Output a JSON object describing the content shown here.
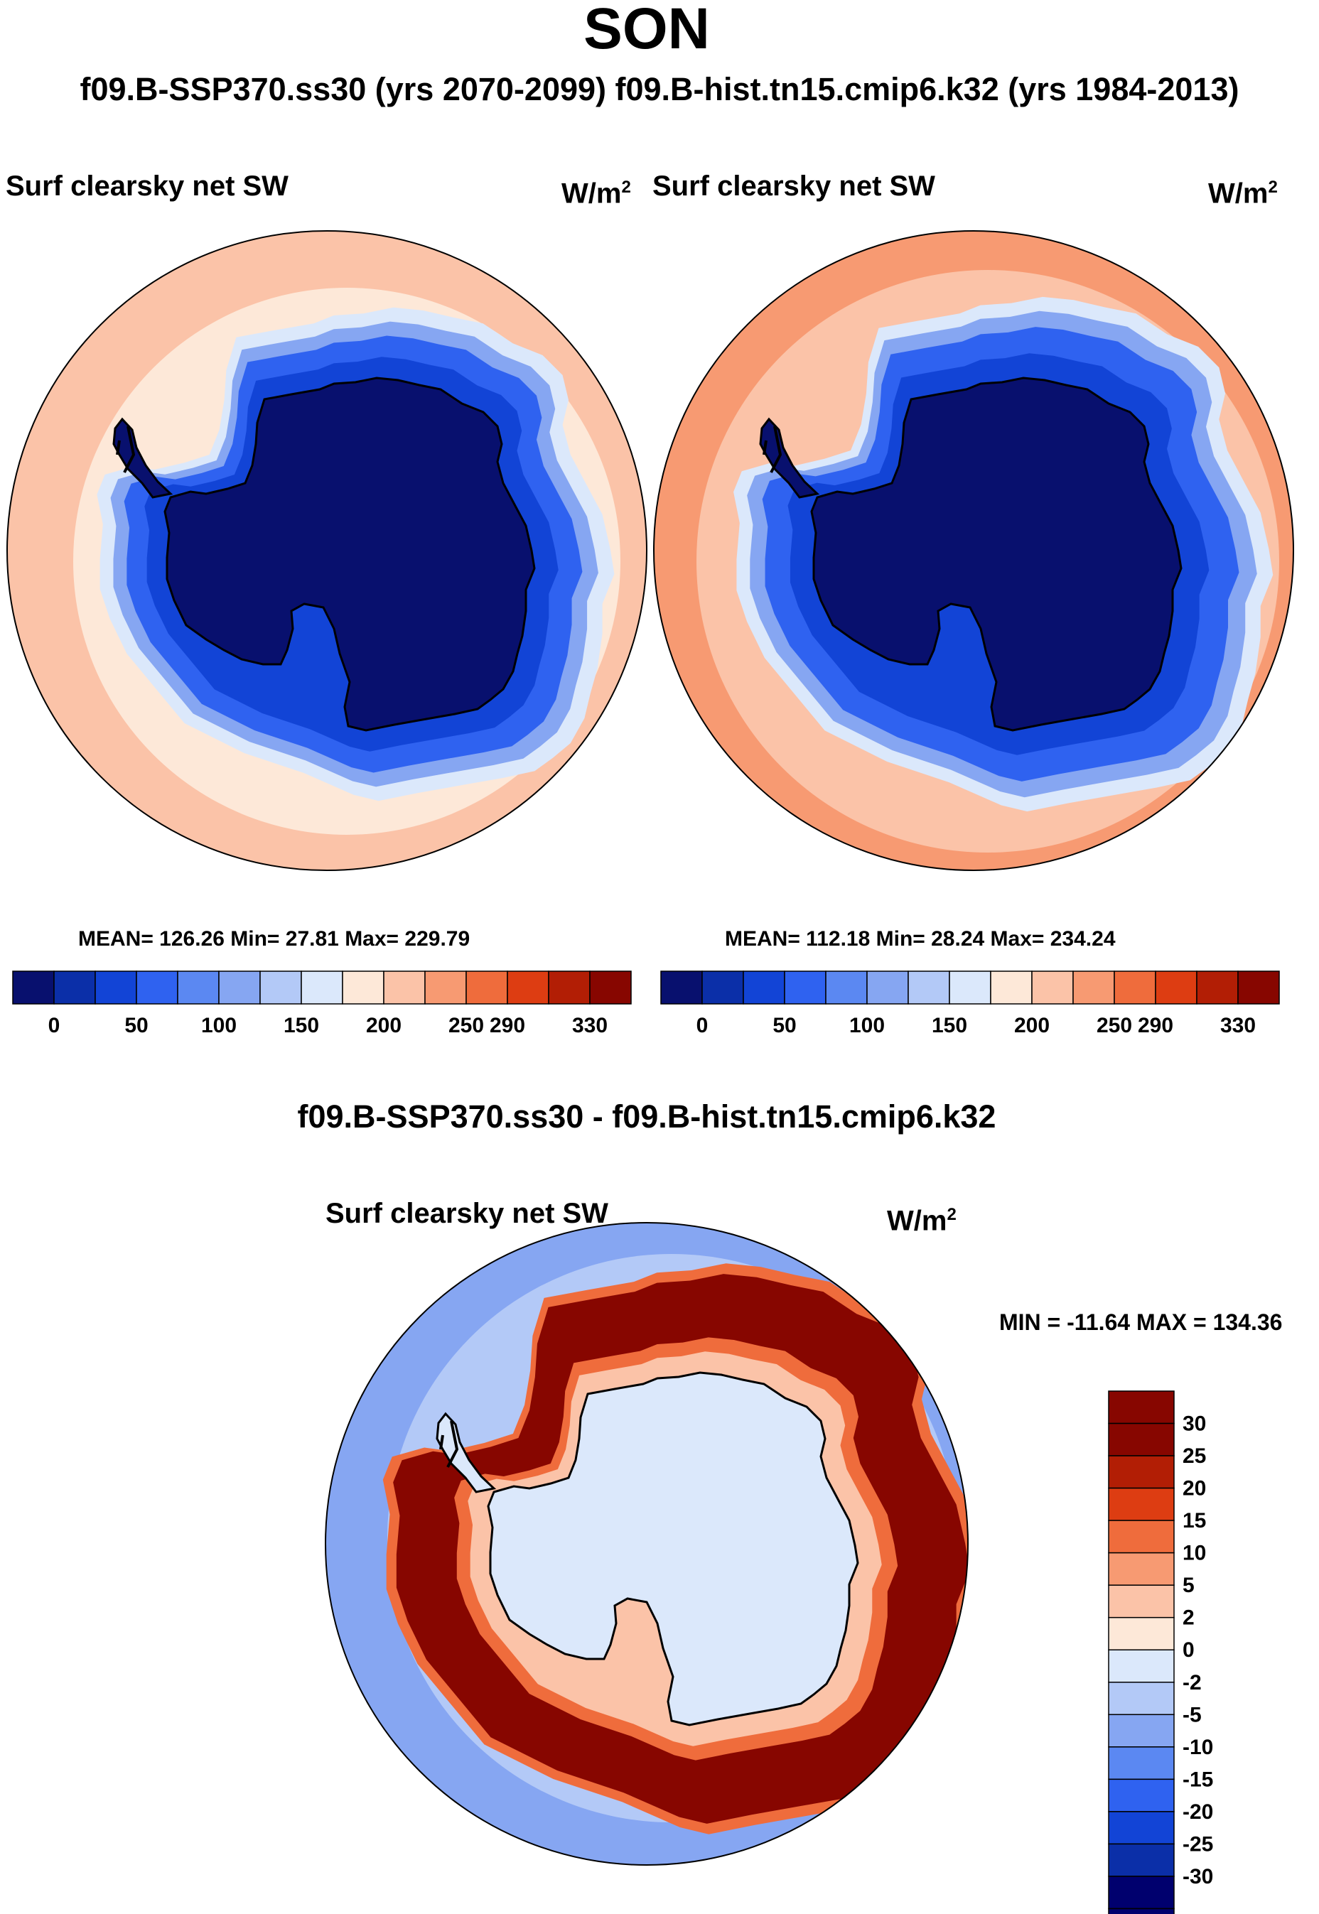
{
  "header": {
    "season": "SON",
    "case_pair": "f09.B-SSP370.ss30 (yrs 2070-2099)  f09.B-hist.tn15.cmip6.k32 (yrs 1984-2013)"
  },
  "panels": [
    {
      "variable": "Surf clearsky net SW",
      "units_base": "W/m",
      "units_exp": "2",
      "stats": "MEAN= 126.26  Min=  27.81  Max= 229.79"
    },
    {
      "variable": "Surf clearsky net SW",
      "units_base": "W/m",
      "units_exp": "2",
      "stats": "MEAN= 112.18  Min=  28.24  Max= 234.24"
    }
  ],
  "diff_panel": {
    "title": "f09.B-SSP370.ss30 - f09.B-hist.tn15.cmip6.k32",
    "variable": "Surf clearsky net SW",
    "units_base": "W/m",
    "units_exp": "2",
    "minmax": "MIN = -11.64 MAX = 134.36"
  },
  "colors": {
    "abs_scale": [
      "#08106e",
      "#0b2fa8",
      "#1244d6",
      "#2f62f0",
      "#5b88f2",
      "#86a6f2",
      "#b3c9f7",
      "#dbe8fb",
      "#fde8d8",
      "#fbc3a8",
      "#f79a72",
      "#ef6c3c",
      "#dd3d12",
      "#b21e05",
      "#870600"
    ],
    "diff_scale": [
      "#00006e",
      "#0b2fa8",
      "#1244d6",
      "#2f62f0",
      "#5b88f2",
      "#86a6f2",
      "#b3c9f7",
      "#dbe8fb",
      "#fde8d8",
      "#fbc3a8",
      "#f79a72",
      "#ef6c3c",
      "#dd3d12",
      "#b21e05",
      "#870600"
    ]
  },
  "chart_data": [
    {
      "type": "heatmap",
      "projection": "south-polar stereographic",
      "title": "Surf clearsky net SW",
      "units": "W/m2",
      "case": "f09.B-SSP370.ss30 (yrs 2070-2099)",
      "mean": 126.26,
      "min": 27.81,
      "max": 229.79,
      "colorbar_ticks": [
        "0",
        "50",
        "100",
        "150",
        "200",
        "250",
        "290",
        "330"
      ],
      "colorbar_levels": 15,
      "field_levels": {
        "continent": 0,
        "sea_ice_inner": 2,
        "sea_ice_mid": 3,
        "ice_edge": 5,
        "transition": 7,
        "ocean_mid": 8,
        "ocean_outer": 9
      }
    },
    {
      "type": "heatmap",
      "projection": "south-polar stereographic",
      "title": "Surf clearsky net SW",
      "units": "W/m2",
      "case": "f09.B-hist.tn15.cmip6.k32 (yrs 1984-2013)",
      "mean": 112.18,
      "min": 28.24,
      "max": 234.24,
      "colorbar_ticks": [
        "0",
        "50",
        "100",
        "150",
        "200",
        "250",
        "290",
        "330"
      ],
      "colorbar_levels": 15,
      "field_levels": {
        "continent": 0,
        "sea_ice_inner": 2,
        "sea_ice_mid": 3,
        "ice_edge": 5,
        "transition": 7,
        "ocean_mid": 9,
        "ocean_outer": 10
      }
    },
    {
      "type": "heatmap",
      "projection": "south-polar stereographic",
      "title": "f09.B-SSP370.ss30 - f09.B-hist.tn15.cmip6.k32",
      "units": "W/m2",
      "min": -11.64,
      "max": 134.36,
      "colorbar_ticks": [
        "30",
        "25",
        "20",
        "15",
        "10",
        "5",
        "2",
        "0",
        "-2",
        "-5",
        "-10",
        "-15",
        "-20",
        "-25",
        "-30"
      ],
      "colorbar_levels": 17,
      "field_levels": {
        "continent": 7,
        "inner_ring": 9,
        "retreat_ring": 14,
        "ring_edge": 11,
        "open_ocean": 6,
        "far_ocean": 5
      }
    }
  ]
}
